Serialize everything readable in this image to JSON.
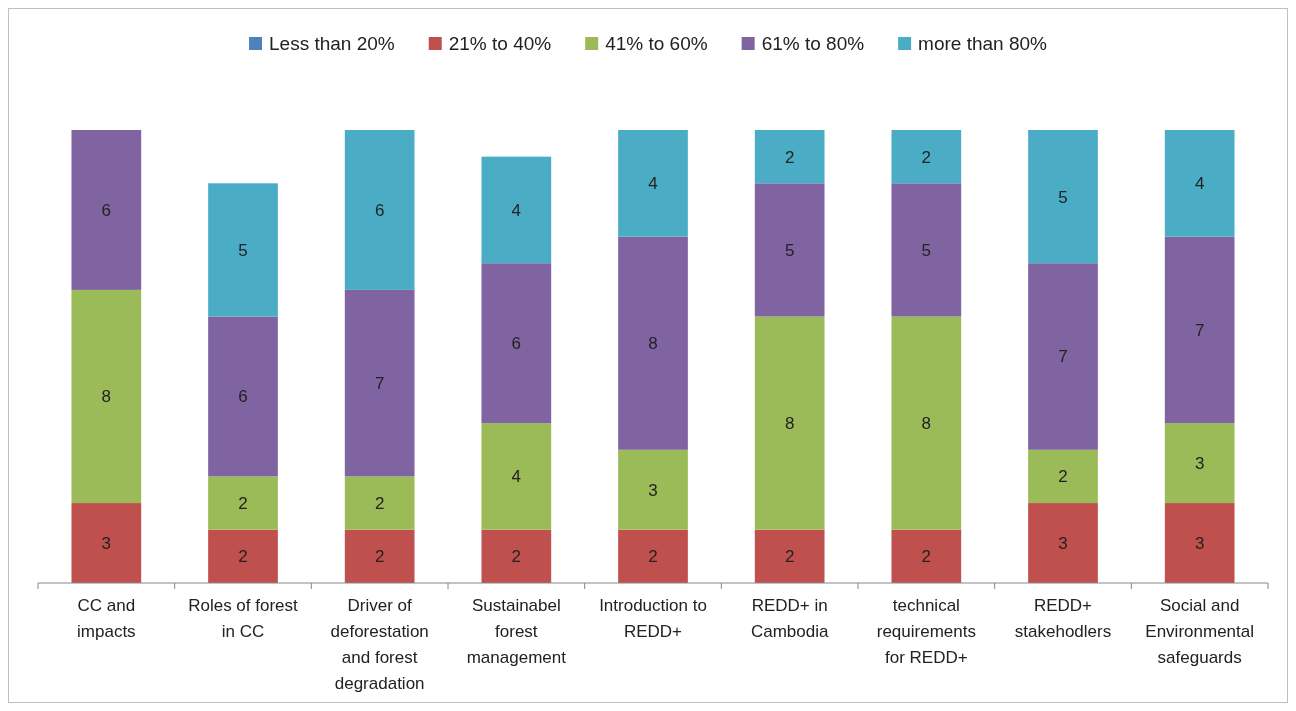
{
  "chart_data": {
    "type": "bar",
    "stacked": true,
    "data_labels": true,
    "legend": "top",
    "categories": [
      "CC and impacts",
      "Roles of forest in CC",
      "Driver of deforestation and forest degradation",
      "Sustainabel forest management",
      "Introduction to REDD+",
      "REDD+ in Cambodia",
      "technical requirements for REDD+",
      "REDD+ stakehodlers",
      "Social and Environmental safeguards"
    ],
    "series": [
      {
        "name": "Less than 20%",
        "color": "#4f81bd",
        "values": [
          null,
          null,
          null,
          null,
          null,
          null,
          null,
          null,
          null
        ]
      },
      {
        "name": "21% to 40%",
        "color": "#c0504d",
        "values": [
          3,
          2,
          2,
          2,
          2,
          2,
          2,
          3,
          3
        ]
      },
      {
        "name": "41% to 60%",
        "color": "#9bbb59",
        "values": [
          8,
          2,
          2,
          4,
          3,
          8,
          8,
          2,
          3
        ]
      },
      {
        "name": "61% to 80%",
        "color": "#8064a2",
        "values": [
          6,
          6,
          7,
          6,
          8,
          5,
          5,
          7,
          7
        ]
      },
      {
        "name": "more than 80%",
        "color": "#4bacc6",
        "values": [
          null,
          5,
          6,
          4,
          4,
          2,
          2,
          5,
          4
        ]
      }
    ]
  }
}
